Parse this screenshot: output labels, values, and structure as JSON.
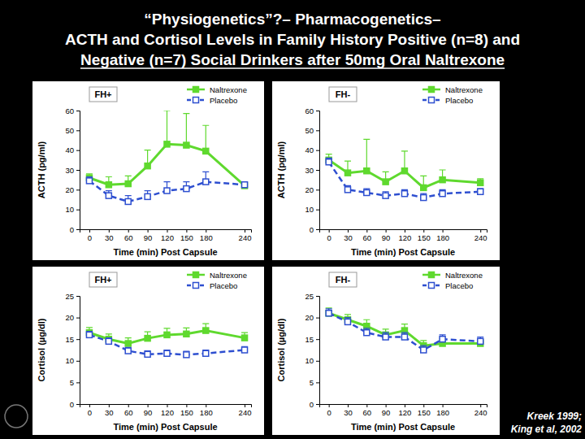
{
  "title": [
    "“Physiogenetics”?– Pharmacogenetics–",
    "ACTH and Cortisol Levels in Family History Positive (n=8) and",
    "Negative (n=7) Social Drinkers after 50mg Oral Naltrexone"
  ],
  "citation": [
    "Kreek 1999;",
    "King et al, 2002"
  ],
  "chart_data": [
    {
      "type": "line",
      "title": "FH+",
      "x_label": "Time (min) Post Capsule",
      "y_label": "ACTH (pg/ml)",
      "x": [
        0,
        30,
        60,
        90,
        120,
        150,
        180,
        240
      ],
      "xlim": [
        -15,
        250
      ],
      "xticks": [
        0,
        30,
        60,
        90,
        120,
        150,
        180,
        240
      ],
      "ylim": [
        0,
        60
      ],
      "yticks": [
        0,
        10,
        20,
        30,
        40,
        50,
        60
      ],
      "legend": "upper right",
      "series": [
        {
          "name": "Naltrexone",
          "color": "#5fd92e",
          "marker": "square",
          "line_style": "solid",
          "values": [
            26,
            22.5,
            23,
            32,
            43,
            42.5,
            39.5,
            22
          ],
          "error": [
            2,
            4,
            4,
            8,
            17,
            16,
            13,
            1
          ]
        },
        {
          "name": "Placebo",
          "color": "#2e4fd0",
          "marker": "open-square",
          "line_style": "dashed",
          "values": [
            24.5,
            17,
            14,
            16.5,
            19.5,
            20.5,
            24,
            22.5
          ],
          "error": [
            2,
            2.5,
            3,
            3,
            4.5,
            3.5,
            5,
            1.5
          ]
        }
      ]
    },
    {
      "type": "line",
      "title": "FH-",
      "x_label": "Time (min) Post Capsule",
      "y_label": "ACTH (pg/ml)",
      "x": [
        0,
        30,
        60,
        90,
        120,
        150,
        180,
        240
      ],
      "xlim": [
        -15,
        250
      ],
      "xticks": [
        0,
        30,
        60,
        90,
        120,
        150,
        180,
        240
      ],
      "ylim": [
        0,
        60
      ],
      "yticks": [
        0,
        10,
        20,
        30,
        40,
        50,
        60
      ],
      "legend": "upper right",
      "series": [
        {
          "name": "Naltrexone",
          "color": "#5fd92e",
          "marker": "square",
          "line_style": "solid",
          "values": [
            35,
            28.5,
            29.5,
            24,
            29.5,
            21,
            25,
            23.5
          ],
          "error": [
            3,
            6,
            16,
            5,
            10,
            6,
            5,
            2
          ]
        },
        {
          "name": "Placebo",
          "color": "#2e4fd0",
          "marker": "open-square",
          "line_style": "dashed",
          "values": [
            34,
            20,
            18.5,
            17,
            18,
            16,
            18,
            19
          ],
          "error": [
            2,
            2,
            2,
            2,
            2,
            2,
            2,
            1.5
          ]
        }
      ]
    },
    {
      "type": "line",
      "title": "FH+",
      "x_label": "Time (min) Post Capsule",
      "y_label": "Cortisol (µg/dl)",
      "x": [
        0,
        30,
        60,
        90,
        120,
        150,
        180,
        240
      ],
      "xlim": [
        -15,
        250
      ],
      "xticks": [
        0,
        30,
        60,
        90,
        120,
        150,
        180,
        240
      ],
      "ylim": [
        0,
        25
      ],
      "yticks": [
        0,
        5,
        10,
        15,
        20,
        25
      ],
      "legend": "upper right",
      "series": [
        {
          "name": "Naltrexone",
          "color": "#5fd92e",
          "marker": "square",
          "line_style": "solid",
          "values": [
            16.5,
            15,
            14,
            15.2,
            16,
            16.2,
            17,
            15.3
          ],
          "error": [
            1.2,
            1.2,
            1.3,
            1.5,
            1.5,
            1.4,
            1.6,
            1.2
          ]
        },
        {
          "name": "Placebo",
          "color": "#2e4fd0",
          "marker": "open-square",
          "line_style": "dashed",
          "values": [
            16,
            14.5,
            12.3,
            11.5,
            11.7,
            11.4,
            11.7,
            12.5
          ],
          "error": [
            0.8,
            0.8,
            0.8,
            0.8,
            0.8,
            0.8,
            0.8,
            0.8
          ]
        }
      ]
    },
    {
      "type": "line",
      "title": "FH-",
      "x_label": "Time (min) Post Capsule",
      "y_label": "Cortisol (µg/dl)",
      "x": [
        0,
        30,
        60,
        90,
        120,
        150,
        180,
        240
      ],
      "xlim": [
        -15,
        250
      ],
      "xticks": [
        0,
        30,
        60,
        90,
        120,
        150,
        180,
        240
      ],
      "ylim": [
        0,
        25
      ],
      "yticks": [
        0,
        5,
        10,
        15,
        20,
        25
      ],
      "legend": "upper right",
      "series": [
        {
          "name": "Naltrexone",
          "color": "#5fd92e",
          "marker": "square",
          "line_style": "solid",
          "values": [
            21,
            19.5,
            18,
            16,
            17,
            13.5,
            14,
            14
          ],
          "error": [
            1.2,
            1.2,
            1.5,
            1.3,
            1.5,
            1.2,
            1.2,
            1
          ]
        },
        {
          "name": "Placebo",
          "color": "#2e4fd0",
          "marker": "open-square",
          "line_style": "dashed",
          "values": [
            21,
            19,
            16.5,
            15.5,
            15.5,
            12.5,
            15,
            14.5
          ],
          "error": [
            1,
            1,
            1,
            1,
            1,
            1,
            1,
            1
          ]
        }
      ]
    }
  ]
}
